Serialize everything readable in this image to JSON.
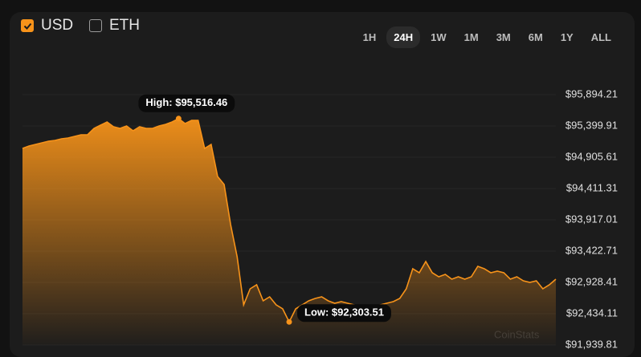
{
  "controls": {
    "currencies": [
      {
        "label": "USD",
        "checked": true
      },
      {
        "label": "ETH",
        "checked": false
      }
    ],
    "ranges": [
      "1H",
      "24H",
      "1W",
      "1M",
      "3M",
      "6M",
      "1Y",
      "ALL"
    ],
    "active_range_index": 1
  },
  "chart_data": {
    "type": "area",
    "color": "#f7931a",
    "grid": true,
    "values": [
      95045.0,
      95083.1,
      95108.4,
      95133.8,
      95159.1,
      95171.8,
      95197.1,
      95209.8,
      95235.2,
      95260.5,
      95260.5,
      95361.9,
      95412.6,
      95463.3,
      95387.2,
      95361.9,
      95399.9,
      95323.9,
      95387.2,
      95361.9,
      95361.9,
      95399.9,
      95425.3,
      95463.3,
      95516.46,
      95437.9,
      95488.6,
      95488.6,
      95045.0,
      95108.4,
      94601.5,
      94474.7,
      93841.0,
      93334.1,
      92573.6,
      92827.1,
      92890.5,
      92637.0,
      92700.4,
      92573.6,
      92510.2,
      92303.51,
      92510.2,
      92573.6,
      92637.0,
      92675.0,
      92700.4,
      92637.0,
      92599.0,
      92624.3,
      92599.0,
      92573.6,
      92548.3,
      92510.2,
      92548.3,
      92573.6,
      92599.0,
      92624.3,
      92675.0,
      92827.1,
      93143.9,
      93080.6,
      93258.0,
      93080.6,
      93017.2,
      93055.2,
      92979.2,
      93017.2,
      92979.2,
      93017.2,
      93182.0,
      93143.9,
      93080.6,
      93105.9,
      93080.6,
      92979.2,
      93017.2,
      92953.8,
      92928.5,
      92953.8,
      92827.1,
      92890.5,
      92979.2
    ],
    "annotations": [
      "High: $95,516.46",
      "Low: $92,303.51"
    ],
    "ylim": [
      91939.81,
      95894.21
    ],
    "yticks": [
      {
        "value": 95894.21,
        "label": "$95,894.21"
      },
      {
        "value": 95399.91,
        "label": "$95,399.91"
      },
      {
        "value": 94905.61,
        "label": "$94,905.61"
      },
      {
        "value": 94411.31,
        "label": "$94,411.31"
      },
      {
        "value": 93917.01,
        "label": "$93,917.01"
      },
      {
        "value": 93422.71,
        "label": "$93,422.71"
      },
      {
        "value": 92928.41,
        "label": "$92,928.41"
      },
      {
        "value": 92434.11,
        "label": "$92,434.11"
      },
      {
        "value": 91939.81,
        "label": "$91,939.81"
      }
    ],
    "watermark": "CoinStats"
  }
}
